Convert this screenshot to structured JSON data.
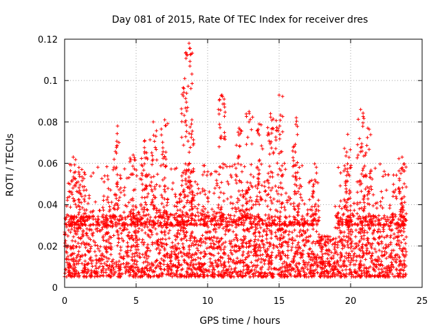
{
  "chart_data": {
    "type": "scatter",
    "title": "Day 081 of 2015, Rate Of TEC Index for receiver dres",
    "xlabel": "GPS time / hours",
    "ylabel": "ROTI / TECUs",
    "xlim": [
      0,
      25
    ],
    "ylim": [
      0,
      0.12
    ],
    "x_ticks": [
      0,
      5,
      10,
      15,
      20,
      25
    ],
    "x_tick_labels": [
      "0",
      "5",
      "10",
      "15",
      "20",
      "25"
    ],
    "y_ticks": [
      0,
      0.02,
      0.04,
      0.06,
      0.08,
      0.1,
      0.12
    ],
    "y_tick_labels": [
      "0",
      "0.02",
      "0.04",
      "0.06",
      "0.08",
      "0.1",
      "0.12"
    ],
    "grid": true,
    "marker": "+",
    "series_color": "#ff0000",
    "x_range_of_data": [
      0,
      23.9
    ],
    "dense_band_approx": [
      0.005,
      0.035
    ],
    "peaks": [
      {
        "x": 0.6,
        "y": 0.063
      },
      {
        "x": 1.2,
        "y": 0.057
      },
      {
        "x": 3.7,
        "y": 0.078
      },
      {
        "x": 4.8,
        "y": 0.064
      },
      {
        "x": 5.6,
        "y": 0.071
      },
      {
        "x": 6.2,
        "y": 0.08
      },
      {
        "x": 7.0,
        "y": 0.081
      },
      {
        "x": 8.4,
        "y": 0.101
      },
      {
        "x": 8.7,
        "y": 0.118
      },
      {
        "x": 8.9,
        "y": 0.081
      },
      {
        "x": 11.0,
        "y": 0.093
      },
      {
        "x": 12.2,
        "y": 0.077
      },
      {
        "x": 12.9,
        "y": 0.085
      },
      {
        "x": 13.6,
        "y": 0.079
      },
      {
        "x": 14.4,
        "y": 0.084
      },
      {
        "x": 15.0,
        "y": 0.093
      },
      {
        "x": 16.2,
        "y": 0.082
      },
      {
        "x": 17.5,
        "y": 0.052
      },
      {
        "x": 19.8,
        "y": 0.074
      },
      {
        "x": 20.7,
        "y": 0.086
      },
      {
        "x": 21.2,
        "y": 0.077
      },
      {
        "x": 23.6,
        "y": 0.063
      }
    ],
    "low_activity_interval": [
      17.8,
      18.9
    ]
  }
}
